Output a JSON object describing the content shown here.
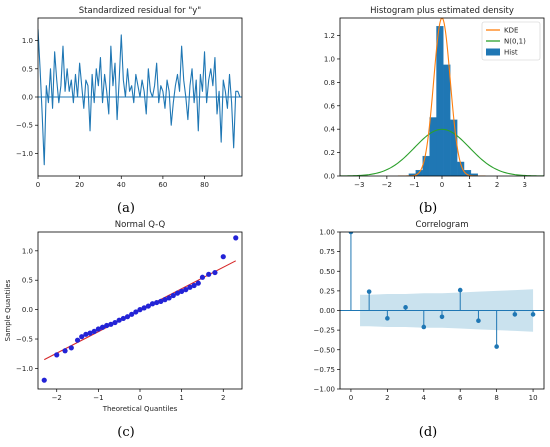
{
  "colors": {
    "blue": "#1f77b4",
    "orange": "#ff7f0e",
    "green": "#2ca02c",
    "red": "#d62728",
    "qq_points": "#2323d6",
    "conf_band": "#a6cee3"
  },
  "chart_data": [
    {
      "panel_label": "(a)",
      "type": "line",
      "title": "Standardized residual for \"y\"",
      "xlabel": "",
      "ylabel": "",
      "xlim": [
        0,
        98
      ],
      "ylim": [
        -1.4,
        1.4
      ],
      "xticks": [
        0,
        20,
        40,
        60,
        80
      ],
      "yticks": [
        -1.0,
        -0.5,
        0.0,
        0.5,
        1.0
      ],
      "xtick_labels": [
        "0",
        "20",
        "40",
        "60",
        "80"
      ],
      "ytick_labels": [
        "−1.0",
        "−0.5",
        "0.0",
        "0.5",
        "1.0"
      ],
      "reference_line_y": 0,
      "series": [
        {
          "values": [
            1.2,
            0.5,
            -0.3,
            -1.2,
            0.2,
            -0.1,
            0.5,
            -0.2,
            0.8,
            0.3,
            -0.1,
            0.2,
            0.9,
            0.1,
            0.5,
            0.1,
            0.3,
            -0.1,
            0.4,
            0.0,
            0.6,
            0.2,
            -0.2,
            0.3,
            0.2,
            -0.6,
            0.4,
            -0.1,
            0.5,
            0.2,
            0.7,
            -0.1,
            0.4,
            0.1,
            -0.3,
            0.9,
            0.2,
            0.6,
            -0.4,
            0.3,
            1.1,
            0.3,
            0.0,
            0.5,
            0.1,
            0.2,
            -0.1,
            0.4,
            0.2,
            0.0,
            0.3,
            0.1,
            -0.3,
            0.5,
            0.1,
            0.0,
            0.2,
            0.6,
            -0.1,
            0.2,
            0.1,
            -0.2,
            0.3,
            0.1,
            -0.5,
            -0.1,
            0.2,
            0.4,
            0.1,
            0.9,
            0.3,
            0.0,
            -0.4,
            0.2,
            0.5,
            -0.1,
            0.3,
            -0.6,
            0.4,
            0.1,
            0.8,
            -0.1,
            0.3,
            0.5,
            0.2,
            0.7,
            -0.3,
            0.1,
            -0.8,
            0.3,
            0.1,
            -0.2,
            0.4,
            -0.1,
            -0.9,
            0.1,
            0.1,
            0.0
          ]
        }
      ]
    },
    {
      "panel_label": "(b)",
      "type": "histogram",
      "title": "Histogram plus estimated density",
      "xlabel": "",
      "ylabel": "",
      "xlim": [
        -3.7,
        3.7
      ],
      "ylim": [
        0,
        1.35
      ],
      "xticks": [
        -3,
        -2,
        -1,
        0,
        1,
        2,
        3
      ],
      "yticks": [
        0.0,
        0.2,
        0.4,
        0.6,
        0.8,
        1.0,
        1.2
      ],
      "xtick_labels": [
        "−3",
        "−2",
        "−1",
        "0",
        "1",
        "2",
        "3"
      ],
      "ytick_labels": [
        "0.0",
        "0.2",
        "0.4",
        "0.6",
        "0.8",
        "1.0",
        "1.2"
      ],
      "legend": {
        "placement": "top-right",
        "entries": [
          {
            "label": "KDE",
            "kind": "line",
            "color": "#ff7f0e"
          },
          {
            "label": "N(0,1)",
            "kind": "line",
            "color": "#2ca02c"
          },
          {
            "label": "Hist",
            "kind": "patch",
            "color": "#1f77b4"
          }
        ]
      },
      "hist_bins": [
        {
          "x0": -1.2,
          "x1": -0.95,
          "density": 0.02
        },
        {
          "x0": -0.95,
          "x1": -0.7,
          "density": 0.05
        },
        {
          "x0": -0.7,
          "x1": -0.45,
          "density": 0.17
        },
        {
          "x0": -0.45,
          "x1": -0.2,
          "density": 0.5
        },
        {
          "x0": -0.2,
          "x1": 0.05,
          "density": 1.28
        },
        {
          "x0": 0.05,
          "x1": 0.3,
          "density": 0.95
        },
        {
          "x0": 0.3,
          "x1": 0.55,
          "density": 0.48
        },
        {
          "x0": 0.55,
          "x1": 0.8,
          "density": 0.12
        },
        {
          "x0": 0.8,
          "x1": 1.05,
          "density": 0.05
        },
        {
          "x0": 1.05,
          "x1": 1.3,
          "density": 0.02
        }
      ],
      "kde_peak": {
        "mean": 0.0,
        "sd": 0.3,
        "peak_density": 1.35
      },
      "normal": {
        "mean": 0,
        "sd": 1
      }
    },
    {
      "panel_label": "(c)",
      "type": "scatter",
      "title": "Normal Q-Q",
      "xlabel": "Theoretical Quantiles",
      "ylabel": "Sample Quantiles",
      "xlim": [
        -2.45,
        2.45
      ],
      "ylim": [
        -1.35,
        1.32
      ],
      "xticks": [
        -2,
        -1,
        0,
        1,
        2
      ],
      "yticks": [
        -1.0,
        -0.5,
        0.0,
        0.5,
        1.0
      ],
      "xtick_labels": [
        "−2",
        "−1",
        "0",
        "1",
        "2"
      ],
      "ytick_labels": [
        "−1.0",
        "−0.5",
        "0.0",
        "0.5",
        "1.0"
      ],
      "reference_line": {
        "x": [
          -2.3,
          2.3
        ],
        "y": [
          -0.85,
          0.83
        ]
      },
      "points": {
        "x": [
          -2.3,
          -2.0,
          -1.8,
          -1.65,
          -1.5,
          -1.4,
          -1.3,
          -1.2,
          -1.1,
          -1.0,
          -0.9,
          -0.8,
          -0.7,
          -0.6,
          -0.5,
          -0.4,
          -0.3,
          -0.2,
          -0.1,
          0.0,
          0.1,
          0.2,
          0.3,
          0.4,
          0.5,
          0.6,
          0.7,
          0.8,
          0.9,
          1.0,
          1.1,
          1.2,
          1.3,
          1.4,
          1.5,
          1.65,
          1.8,
          2.0,
          2.3
        ],
        "y": [
          -1.2,
          -0.77,
          -0.7,
          -0.65,
          -0.52,
          -0.46,
          -0.42,
          -0.4,
          -0.37,
          -0.33,
          -0.3,
          -0.27,
          -0.25,
          -0.22,
          -0.18,
          -0.15,
          -0.12,
          -0.08,
          -0.04,
          0.0,
          0.03,
          0.06,
          0.1,
          0.12,
          0.14,
          0.17,
          0.2,
          0.24,
          0.28,
          0.31,
          0.34,
          0.38,
          0.41,
          0.45,
          0.55,
          0.6,
          0.63,
          0.9,
          1.22
        ]
      }
    },
    {
      "panel_label": "(d)",
      "type": "stem",
      "title": "Correlogram",
      "xlabel": "",
      "ylabel": "",
      "xlim": [
        -0.6,
        10.6
      ],
      "ylim": [
        -1.0,
        1.0
      ],
      "xticks": [
        0,
        2,
        4,
        6,
        8,
        10
      ],
      "yticks": [
        -1.0,
        -0.75,
        -0.5,
        -0.25,
        0.0,
        0.25,
        0.5,
        0.75,
        1.0
      ],
      "xtick_labels": [
        "0",
        "2",
        "4",
        "6",
        "8",
        "10"
      ],
      "ytick_labels": [
        "−1.00",
        "−0.75",
        "−0.50",
        "−0.25",
        "0.00",
        "0.25",
        "0.50",
        "0.75",
        "1.00"
      ],
      "lags": [
        0,
        1,
        2,
        3,
        4,
        5,
        6,
        7,
        8,
        9,
        10
      ],
      "acf": [
        1.0,
        0.24,
        -0.1,
        0.04,
        -0.21,
        -0.08,
        0.26,
        -0.13,
        -0.46,
        -0.05,
        -0.05
      ],
      "confidence_band": [
        0.2,
        0.2,
        0.21,
        0.21,
        0.22,
        0.22,
        0.23,
        0.24,
        0.25,
        0.26,
        0.27
      ]
    }
  ]
}
